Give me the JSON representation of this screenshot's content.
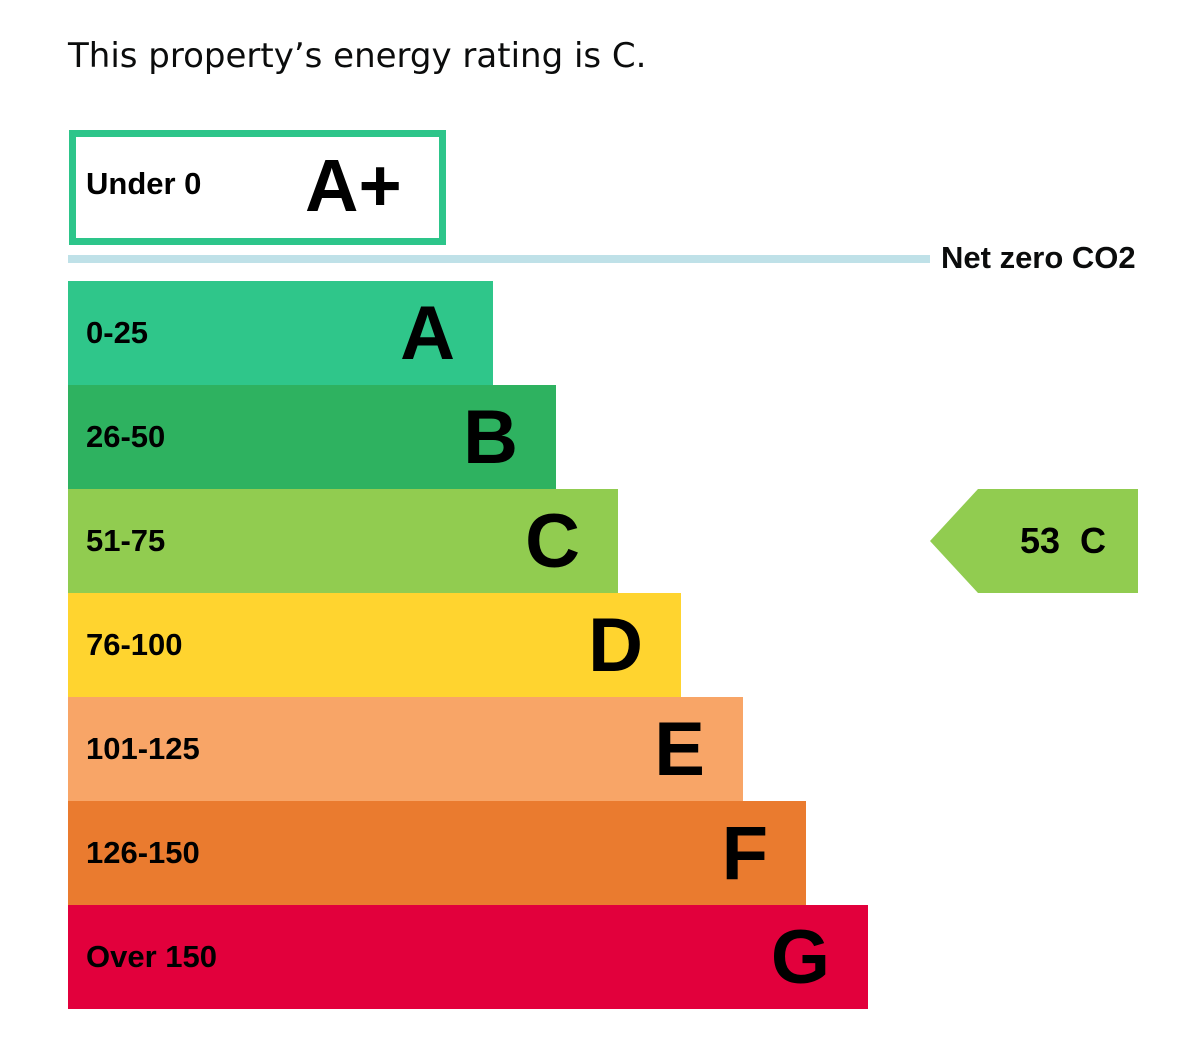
{
  "headline": "This property’s energy rating is C.",
  "net_zero": {
    "label": "Net zero CO2",
    "line_color": "#bfe1e8"
  },
  "chart_data": {
    "type": "bar",
    "title": "",
    "xlabel": "",
    "ylabel": "",
    "top_band": {
      "range": "Under 0",
      "letter": "A+",
      "color": "#2dc58a",
      "style": "outlined"
    },
    "bands": [
      {
        "range": "0-25",
        "letter": "A",
        "color": "#2fc68a",
        "rank": 1
      },
      {
        "range": "26-50",
        "letter": "B",
        "color": "#2eb260",
        "rank": 2
      },
      {
        "range": "51-75",
        "letter": "C",
        "color": "#91cc50",
        "rank": 3
      },
      {
        "range": "76-100",
        "letter": "D",
        "color": "#ffd42f",
        "rank": 4
      },
      {
        "range": "101-125",
        "letter": "E",
        "color": "#f8a567",
        "rank": 5
      },
      {
        "range": "126-150",
        "letter": "F",
        "color": "#ea7b2f",
        "rank": 6
      },
      {
        "range": "Over 150",
        "letter": "G",
        "color": "#e2003c",
        "rank": 7
      }
    ],
    "current": {
      "score": 53,
      "letter": "C",
      "label": "53  C",
      "band_index": 2,
      "color": "#91cc50"
    }
  }
}
